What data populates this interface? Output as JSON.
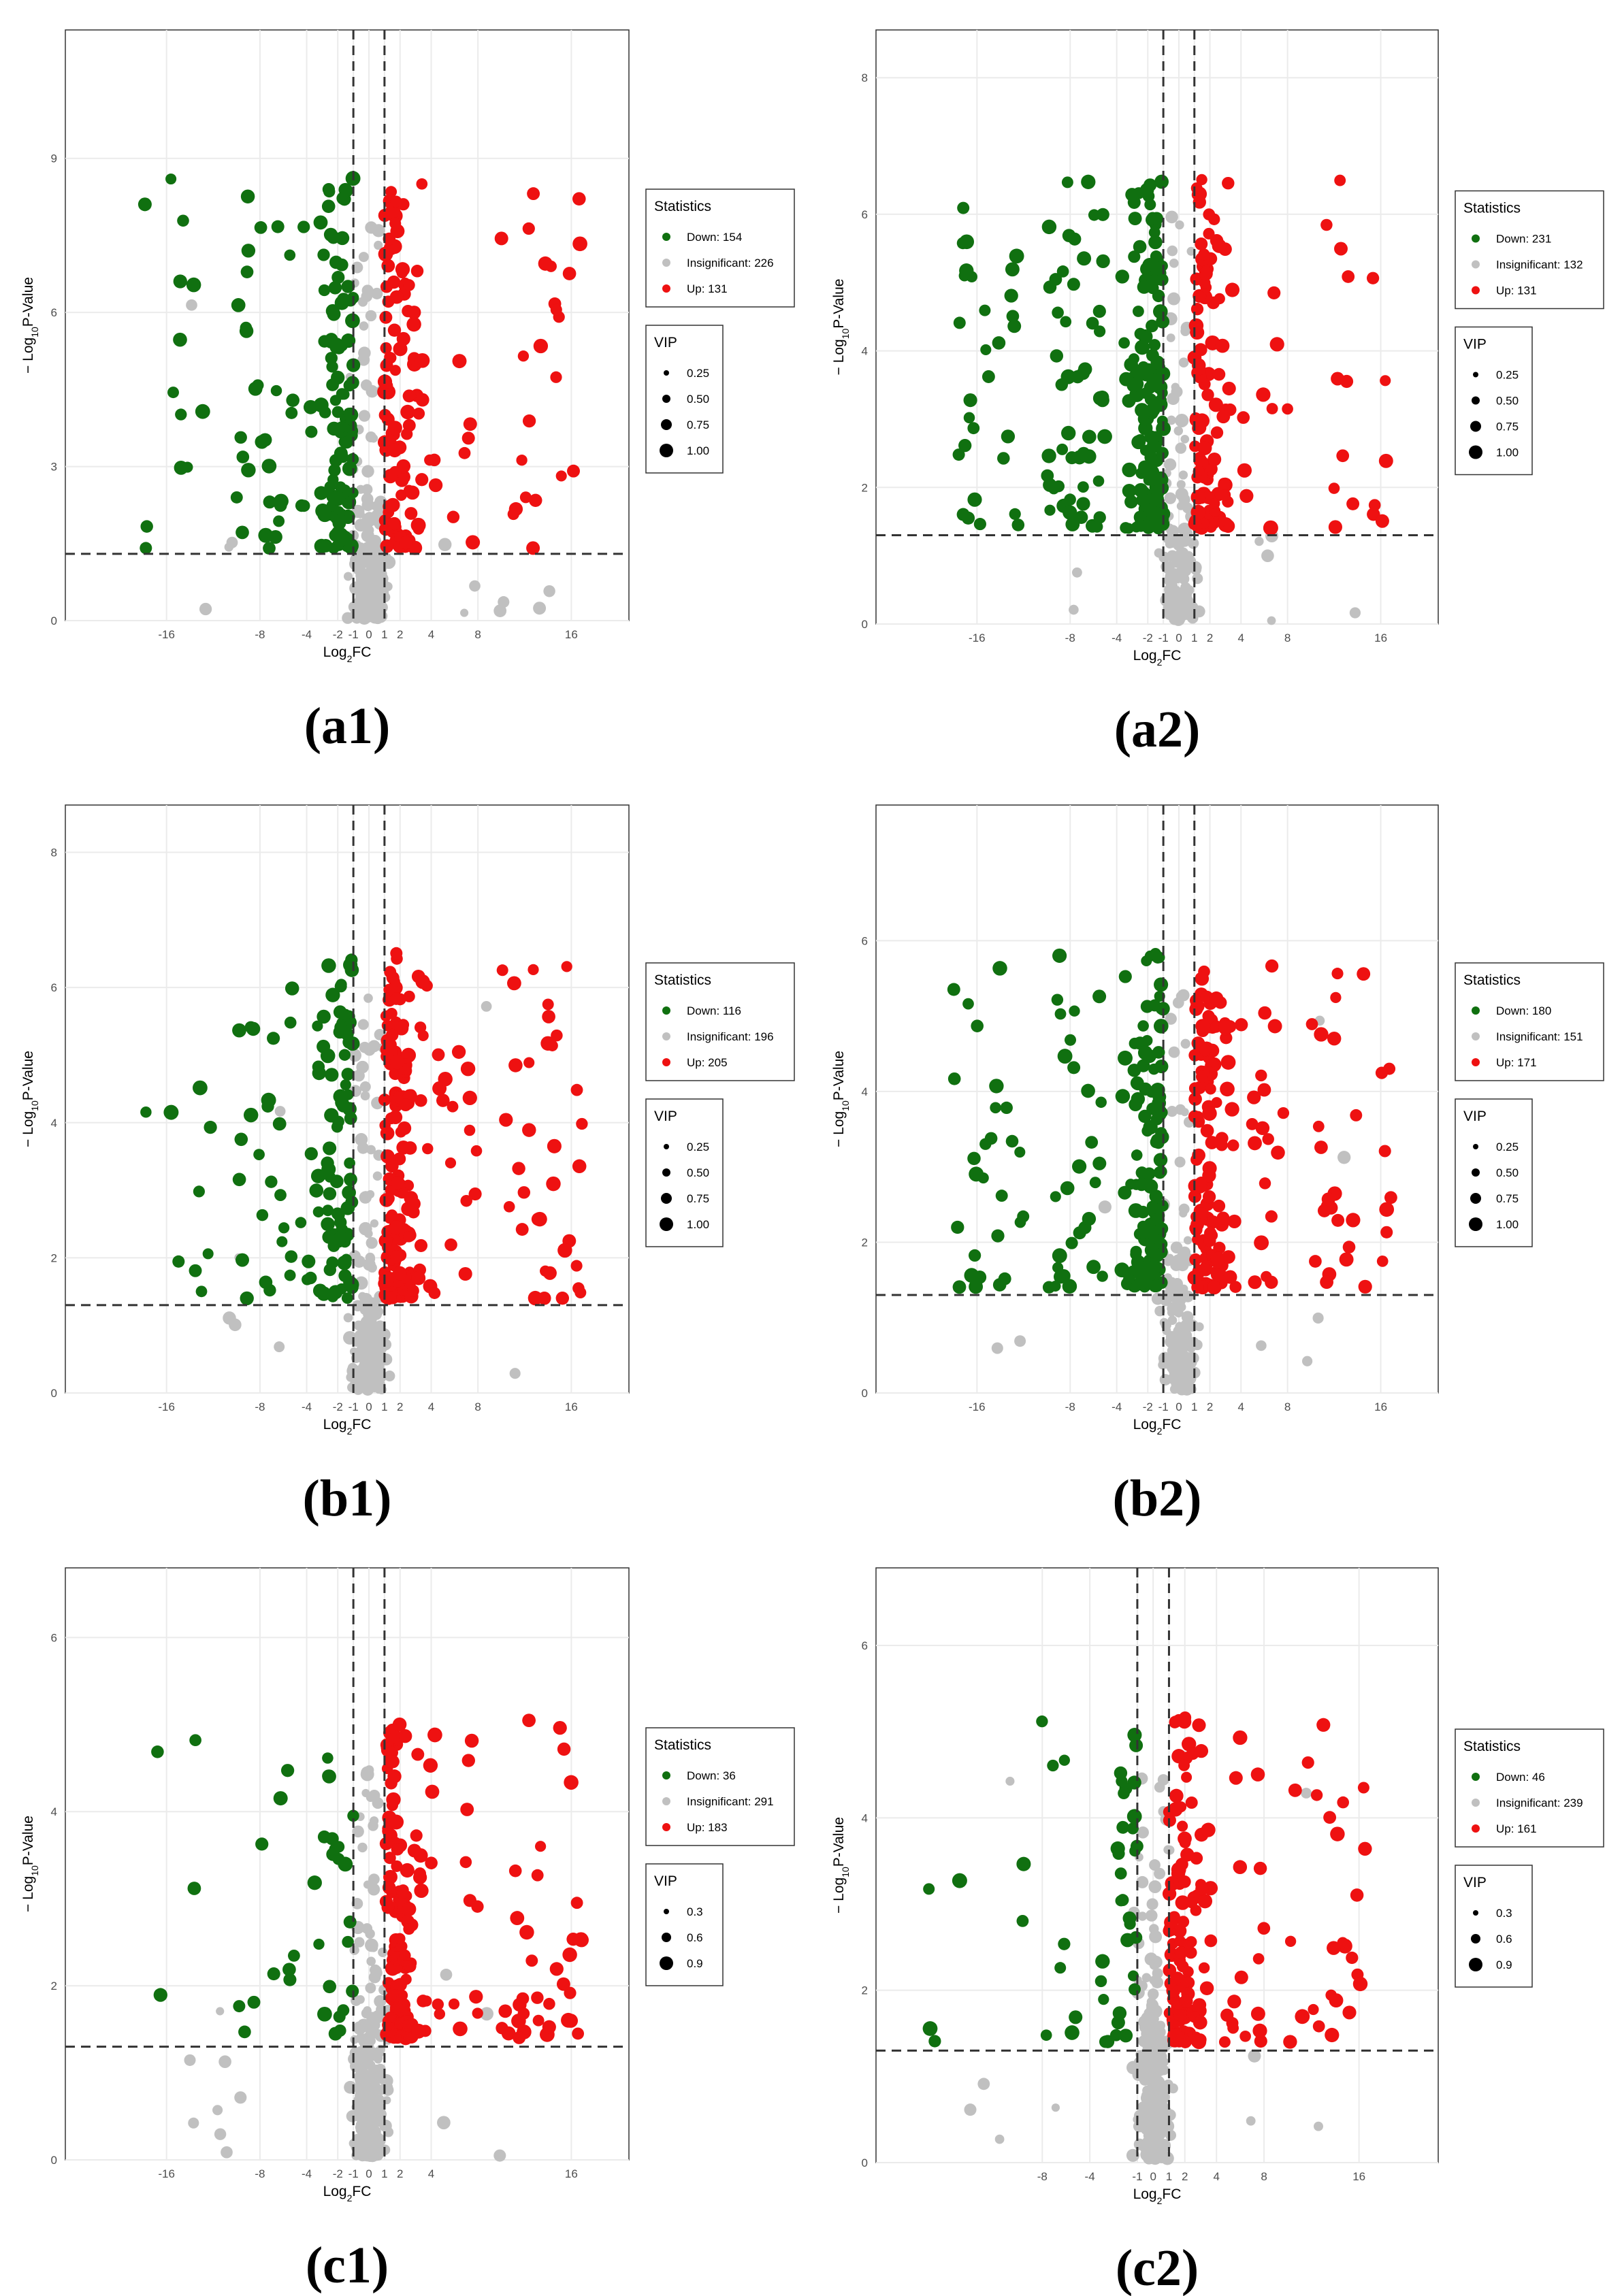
{
  "chart_data": [
    {
      "id": "a1",
      "type": "scatter",
      "panel_label": "(a1)",
      "xlabel": "Log2FC",
      "ylabel": "-Log10P-Value",
      "xticks": [
        "-16",
        "-8",
        "-4",
        "-2",
        "-1",
        "0",
        "1",
        "2",
        "4",
        "8",
        "16"
      ],
      "yticks": [
        "0",
        "3",
        "6",
        "9"
      ],
      "ylim": [
        0,
        11.5
      ],
      "thresholds": {
        "log2fc": [
          -1,
          1
        ],
        "neg_log10_p": 1.3
      },
      "legend": {
        "statistics_title": "Statistics",
        "entries": [
          "Down: 154",
          "Insignificant: 226",
          "Up: 131"
        ],
        "vip_title": "VIP",
        "vip_values": [
          "0.25",
          "0.50",
          "0.75",
          "1.00"
        ]
      },
      "counts": {
        "down": 154,
        "insignificant": 226,
        "up": 131
      }
    },
    {
      "id": "a2",
      "type": "scatter",
      "panel_label": "(a2)",
      "xlabel": "Log2FC",
      "ylabel": "-Log10P-Value",
      "xticks": [
        "-16",
        "-8",
        "-4",
        "-2",
        "-1",
        "0",
        "1",
        "2",
        "4",
        "8",
        "16"
      ],
      "yticks": [
        "0",
        "2",
        "4",
        "6",
        "8"
      ],
      "ylim": [
        0,
        8.7
      ],
      "thresholds": {
        "log2fc": [
          -1,
          1
        ],
        "neg_log10_p": 1.3
      },
      "legend": {
        "statistics_title": "Statistics",
        "entries": [
          "Down: 231",
          "Insignificant: 132",
          "Up: 131"
        ],
        "vip_title": "VIP",
        "vip_values": [
          "0.25",
          "0.50",
          "0.75",
          "1.00"
        ]
      },
      "counts": {
        "down": 231,
        "insignificant": 132,
        "up": 131
      }
    },
    {
      "id": "b1",
      "type": "scatter",
      "panel_label": "(b1)",
      "xlabel": "Log2FC",
      "ylabel": "-Log10P-Value",
      "xticks": [
        "-16",
        "-8",
        "-4",
        "-2",
        "-1",
        "0",
        "1",
        "2",
        "4",
        "8",
        "16"
      ],
      "yticks": [
        "0",
        "2",
        "4",
        "6",
        "8"
      ],
      "ylim": [
        0,
        8.7
      ],
      "thresholds": {
        "log2fc": [
          -1,
          1
        ],
        "neg_log10_p": 1.3
      },
      "legend": {
        "statistics_title": "Statistics",
        "entries": [
          "Down: 116",
          "Insignificant: 196",
          "Up: 205"
        ],
        "vip_title": "VIP",
        "vip_values": [
          "0.25",
          "0.50",
          "0.75",
          "1.00"
        ]
      },
      "counts": {
        "down": 116,
        "insignificant": 196,
        "up": 205
      }
    },
    {
      "id": "b2",
      "type": "scatter",
      "panel_label": "(b2)",
      "xlabel": "Log2FC",
      "ylabel": "-Log10P-Value",
      "xticks": [
        "-16",
        "-8",
        "-4",
        "-2",
        "-1",
        "0",
        "1",
        "2",
        "4",
        "8",
        "16"
      ],
      "yticks": [
        "0",
        "2",
        "4",
        "6"
      ],
      "ylim": [
        0,
        7.8
      ],
      "thresholds": {
        "log2fc": [
          -1,
          1
        ],
        "neg_log10_p": 1.3
      },
      "legend": {
        "statistics_title": "Statistics",
        "entries": [
          "Down: 180",
          "Insignificant: 151",
          "Up: 171"
        ],
        "vip_title": "VIP",
        "vip_values": [
          "0.25",
          "0.50",
          "0.75",
          "1.00"
        ]
      },
      "counts": {
        "down": 180,
        "insignificant": 151,
        "up": 171
      }
    },
    {
      "id": "c1",
      "type": "scatter",
      "panel_label": "(c1)",
      "xlabel": "Log2FC",
      "ylabel": "-Log10P-Value",
      "xticks": [
        "-16",
        "-8",
        "-4",
        "-2",
        "-1",
        "0",
        "1",
        "2",
        "4",
        "16"
      ],
      "yticks": [
        "0",
        "2",
        "4",
        "6"
      ],
      "ylim": [
        0,
        6.8
      ],
      "thresholds": {
        "log2fc": [
          -1,
          1
        ],
        "neg_log10_p": 1.3
      },
      "legend": {
        "statistics_title": "Statistics",
        "entries": [
          "Down: 36",
          "Insignificant: 291",
          "Up: 183"
        ],
        "vip_title": "VIP",
        "vip_values": [
          "0.3",
          "0.6",
          "0.9"
        ]
      },
      "counts": {
        "down": 36,
        "insignificant": 291,
        "up": 183
      }
    },
    {
      "id": "c2",
      "type": "scatter",
      "panel_label": "(c2)",
      "xlabel": "Log2FC",
      "ylabel": "-Log10P-Value",
      "xticks": [
        "-8",
        "-4",
        "-1",
        "0",
        "1",
        "2",
        "4",
        "8",
        "16"
      ],
      "yticks": [
        "0",
        "2",
        "4",
        "6"
      ],
      "ylim": [
        0,
        6.9
      ],
      "thresholds": {
        "log2fc": [
          -1,
          1
        ],
        "neg_log10_p": 1.3
      },
      "legend": {
        "statistics_title": "Statistics",
        "entries": [
          "Down: 46",
          "Insignificant: 239",
          "Up: 161"
        ],
        "vip_title": "VIP",
        "vip_values": [
          "0.3",
          "0.6",
          "0.9"
        ]
      },
      "counts": {
        "down": 46,
        "insignificant": 239,
        "up": 161
      }
    }
  ],
  "colors": {
    "down": "#107010",
    "insignificant": "#c0c0c0",
    "up": "#ee1111",
    "grid": "#ebebeb",
    "threshold": "#333333"
  }
}
